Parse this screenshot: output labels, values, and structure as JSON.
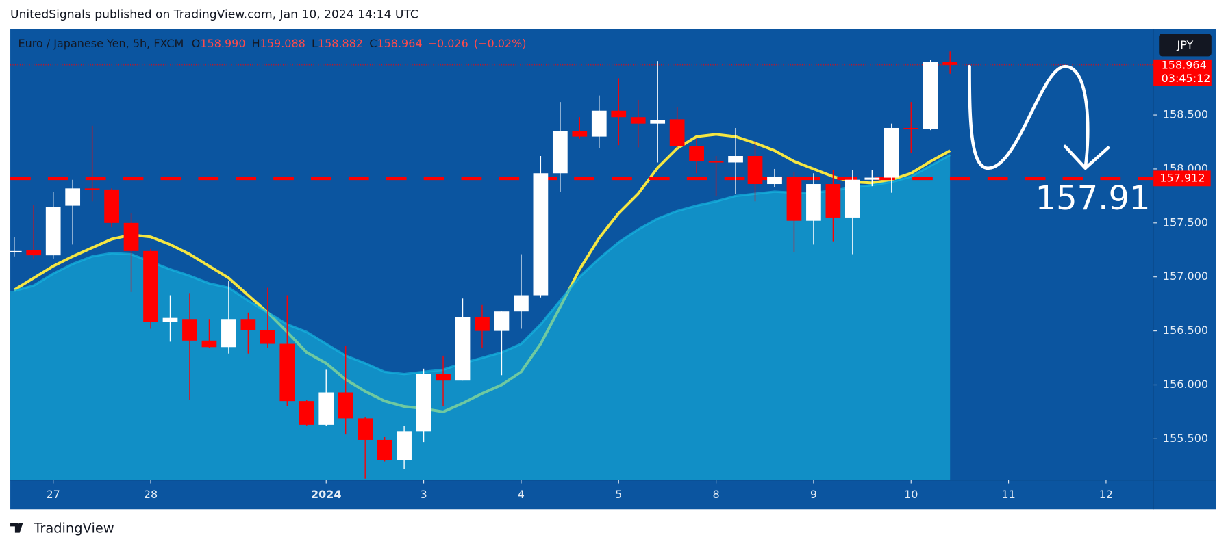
{
  "header": {
    "publisher": "UnitedSignals published on TradingView.com, Jan 10, 2024 14:14 UTC",
    "brand": "TradingView",
    "currency_button": "JPY"
  },
  "chart_data": {
    "type": "candlestick",
    "symbol": "Euro / Japanese Yen, 5h, FXCM",
    "ohlc_legend": [
      {
        "prefix": "O",
        "value": 158.99,
        "label": "158.990"
      },
      {
        "prefix": "H",
        "value": 159.088,
        "label": "159.088"
      },
      {
        "prefix": "L",
        "value": 158.882,
        "label": "158.882"
      },
      {
        "prefix": "C",
        "value": 158.964,
        "label": "158.964"
      },
      {
        "value": -0.026,
        "label": "−0.026"
      },
      {
        "value": -0.02,
        "label": "(−0.02%)"
      }
    ],
    "categories": [
      null,
      null,
      "27",
      null,
      null,
      null,
      null,
      "28",
      null,
      null,
      null,
      null,
      null,
      null,
      null,
      null,
      "2024",
      null,
      null,
      null,
      null,
      "3",
      null,
      null,
      null,
      null,
      "4",
      null,
      null,
      null,
      null,
      "5",
      null,
      null,
      null,
      null,
      "8",
      null,
      null,
      null,
      null,
      "9",
      null,
      null,
      null,
      null,
      "10",
      null,
      null,
      null,
      null,
      "11",
      null,
      null,
      null,
      null,
      "12",
      null,
      null
    ],
    "open": [
      157.24,
      157.25,
      157.2,
      157.66,
      157.82,
      157.81,
      157.5,
      157.24,
      156.58,
      156.61,
      156.41,
      156.35,
      156.61,
      156.51,
      156.38,
      155.85,
      155.63,
      155.93,
      155.69,
      155.49,
      155.3,
      155.57,
      156.1,
      156.04,
      156.63,
      156.5,
      156.68,
      156.83,
      157.96,
      158.35,
      158.3,
      158.54,
      158.48,
      158.42,
      158.46,
      158.21,
      158.07,
      158.06,
      158.12,
      157.86,
      157.93,
      157.52,
      157.86,
      157.55,
      157.9,
      157.92,
      158.38,
      158.37,
      158.99,
      null,
      null,
      null,
      null,
      null,
      null,
      null,
      null,
      null,
      null
    ],
    "high": [
      157.37,
      157.67,
      157.79,
      157.9,
      158.4,
      157.82,
      157.59,
      157.26,
      156.83,
      156.85,
      156.61,
      156.96,
      156.67,
      156.9,
      156.83,
      155.86,
      156.14,
      156.36,
      155.7,
      155.52,
      155.62,
      156.15,
      156.27,
      156.8,
      156.74,
      156.68,
      157.21,
      158.12,
      158.62,
      158.48,
      158.68,
      158.84,
      158.64,
      159.0,
      158.57,
      158.28,
      158.12,
      158.38,
      158.26,
      158.0,
      157.97,
      157.96,
      157.99,
      157.99,
      157.99,
      158.42,
      158.62,
      159.01,
      159.088,
      null,
      null,
      null,
      null,
      null,
      null,
      null,
      null,
      null,
      null
    ],
    "low": [
      157.19,
      157.17,
      157.17,
      157.3,
      157.7,
      157.46,
      156.86,
      156.52,
      156.4,
      155.86,
      156.34,
      156.29,
      156.29,
      156.34,
      155.8,
      155.62,
      155.62,
      155.54,
      155.13,
      155.29,
      155.22,
      155.47,
      155.8,
      156.04,
      156.34,
      156.09,
      156.52,
      156.81,
      157.79,
      158.28,
      158.19,
      158.22,
      158.2,
      158.06,
      158.19,
      157.96,
      157.75,
      157.77,
      157.7,
      157.83,
      157.23,
      157.3,
      157.33,
      157.21,
      157.84,
      157.78,
      158.15,
      158.36,
      158.882,
      null,
      null,
      null,
      null,
      null,
      null,
      null,
      null,
      null,
      null
    ],
    "close": [
      157.24,
      157.2,
      157.65,
      157.82,
      157.81,
      157.5,
      157.24,
      156.58,
      156.62,
      156.41,
      156.35,
      156.61,
      156.51,
      156.38,
      155.85,
      155.63,
      155.93,
      155.69,
      155.49,
      155.3,
      155.57,
      156.1,
      156.04,
      156.63,
      156.5,
      156.68,
      156.83,
      157.96,
      158.35,
      158.3,
      158.54,
      158.48,
      158.42,
      158.45,
      158.21,
      158.07,
      158.06,
      158.12,
      157.86,
      157.93,
      157.52,
      157.86,
      157.55,
      157.9,
      157.92,
      158.38,
      158.37,
      158.99,
      158.964,
      null,
      null,
      null,
      null,
      null,
      null,
      null,
      null,
      null,
      null
    ],
    "up_color": "#ffffff",
    "down_color": "#ff0000",
    "overlays": [
      {
        "color": "#f5e642",
        "fill": false,
        "values": [
          156.88,
          156.99,
          157.1,
          157.19,
          157.27,
          157.35,
          157.39,
          157.37,
          157.3,
          157.21,
          157.1,
          156.99,
          156.83,
          156.67,
          156.49,
          156.3,
          156.2,
          156.05,
          155.94,
          155.85,
          155.8,
          155.78,
          155.75,
          155.83,
          155.92,
          156.0,
          156.12,
          156.38,
          156.72,
          157.07,
          157.36,
          157.59,
          157.77,
          158.01,
          158.19,
          158.3,
          158.32,
          158.3,
          158.24,
          158.17,
          158.07,
          158.0,
          157.93,
          157.88,
          157.87,
          157.9,
          157.96,
          158.07,
          158.17,
          null,
          null,
          null,
          null,
          null,
          null,
          null,
          null,
          null,
          null
        ]
      },
      {
        "color": "#16b5e0",
        "fill": true,
        "values": [
          156.87,
          156.92,
          157.03,
          157.12,
          157.19,
          157.22,
          157.21,
          157.14,
          157.07,
          157.01,
          156.94,
          156.9,
          156.78,
          156.67,
          156.56,
          156.49,
          156.38,
          156.27,
          156.2,
          156.12,
          156.1,
          156.12,
          156.14,
          156.2,
          156.25,
          156.3,
          156.38,
          156.56,
          156.78,
          157.0,
          157.17,
          157.32,
          157.44,
          157.54,
          157.61,
          157.66,
          157.7,
          157.75,
          157.77,
          157.79,
          157.78,
          157.78,
          157.8,
          157.83,
          157.85,
          157.88,
          157.93,
          158.03,
          158.13,
          null,
          null,
          null,
          null,
          null,
          null,
          null,
          null,
          null,
          null
        ]
      }
    ],
    "hline": {
      "value": 157.912,
      "label": "157.912",
      "color": "#ff0000"
    },
    "last_price": {
      "value": 158.964,
      "label": "158.964",
      "countdown": "03:45:12"
    },
    "annotation": {
      "value": 157.91,
      "label": "157.91"
    },
    "ylim": [
      155.116,
      159.297
    ],
    "yticks": [
      {
        "value": 155.5,
        "label": "155.500"
      },
      {
        "value": 156,
        "label": "156.000"
      },
      {
        "value": 156.5,
        "label": "156.500"
      },
      {
        "value": 157,
        "label": "157.000"
      },
      {
        "value": 157.5,
        "label": "157.500"
      },
      {
        "value": 158,
        "label": "158.000"
      },
      {
        "value": 158.5,
        "label": "158.500"
      }
    ],
    "bold_categories": [
      "2024"
    ]
  }
}
